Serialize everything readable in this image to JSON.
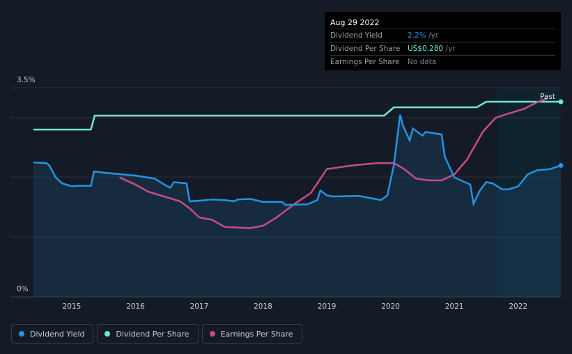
{
  "tooltip": {
    "date": "Aug 29 2022",
    "rows": [
      {
        "label": "Dividend Yield",
        "value": "2.2%",
        "unit": " /yr"
      },
      {
        "label": "Dividend Per Share",
        "value": "US$0.280",
        "unit": " /yr"
      },
      {
        "label": "Earnings Per Share",
        "value": "No data",
        "unit": ""
      }
    ]
  },
  "legend": {
    "items": [
      {
        "label": "Dividend Yield",
        "color": "#2394e5"
      },
      {
        "label": "Dividend Per Share",
        "color": "#6ee7cf"
      },
      {
        "label": "Earnings Per Share",
        "color": "#c94b8a"
      }
    ]
  },
  "colors": {
    "background": "#151b26",
    "yield": "#2394e5",
    "dps": "#6ee7cf",
    "eps": "#c94b8a",
    "grid": "#2b313c"
  },
  "chart_data": {
    "type": "line",
    "ylim": [
      0,
      3.5
    ],
    "y_tick_labels": [
      "3.5%",
      "0%"
    ],
    "x_range": [
      2014.4,
      2022.67
    ],
    "x_ticks": [
      "2015",
      "2016",
      "2017",
      "2018",
      "2019",
      "2020",
      "2021",
      "2022"
    ],
    "past_label": "Past",
    "past_start": 2021.67,
    "series": [
      {
        "name": "Dividend Yield",
        "x": [
          2014.4,
          2014.6,
          2014.65,
          2014.75,
          2014.85,
          2015.0,
          2015.1,
          2015.3,
          2015.35,
          2015.5,
          2016.0,
          2016.3,
          2016.5,
          2016.55,
          2016.6,
          2016.8,
          2016.85,
          2017.0,
          2017.2,
          2017.4,
          2017.55,
          2017.6,
          2017.8,
          2018.0,
          2018.3,
          2018.35,
          2018.7,
          2018.85,
          2018.9,
          2019.0,
          2019.1,
          2019.5,
          2019.85,
          2019.95,
          2020.05,
          2020.15,
          2020.2,
          2020.3,
          2020.35,
          2020.5,
          2020.55,
          2020.8,
          2020.85,
          2021.0,
          2021.25,
          2021.3,
          2021.4,
          2021.5,
          2021.6,
          2021.75,
          2021.85,
          2022.0,
          2022.15,
          2022.3,
          2022.5,
          2022.67
        ],
        "values": [
          2.25,
          2.24,
          2.2,
          2.0,
          1.9,
          1.85,
          1.86,
          1.86,
          2.1,
          2.08,
          2.03,
          1.98,
          1.85,
          1.83,
          1.92,
          1.9,
          1.6,
          1.61,
          1.63,
          1.62,
          1.6,
          1.63,
          1.64,
          1.59,
          1.59,
          1.54,
          1.55,
          1.62,
          1.78,
          1.7,
          1.68,
          1.69,
          1.62,
          1.7,
          2.2,
          3.05,
          2.85,
          2.62,
          2.82,
          2.7,
          2.76,
          2.72,
          2.35,
          2.0,
          1.88,
          1.56,
          1.78,
          1.92,
          1.9,
          1.8,
          1.8,
          1.85,
          2.05,
          2.12,
          2.14,
          2.2
        ]
      },
      {
        "name": "Dividend Per Share",
        "x": [
          2014.4,
          2015.3,
          2015.36,
          2019.9,
          2020.05,
          2021.35,
          2021.5,
          2022.67
        ],
        "values": [
          0.24,
          0.24,
          0.26,
          0.26,
          0.272,
          0.272,
          0.28,
          0.28
        ]
      },
      {
        "name": "Earnings Per Share",
        "x": [
          2015.75,
          2016.0,
          2016.2,
          2016.45,
          2016.7,
          2016.85,
          2017.0,
          2017.2,
          2017.4,
          2017.8,
          2018.0,
          2018.2,
          2018.5,
          2018.75,
          2019.0,
          2019.4,
          2019.8,
          2020.05,
          2020.2,
          2020.4,
          2020.6,
          2020.8,
          2021.0,
          2021.2,
          2021.45,
          2021.65,
          2021.85,
          2022.1,
          2022.3,
          2022.45
        ],
        "values": [
          2.0,
          1.88,
          1.76,
          1.68,
          1.6,
          1.48,
          1.33,
          1.29,
          1.17,
          1.15,
          1.19,
          1.32,
          1.56,
          1.74,
          2.14,
          2.2,
          2.24,
          2.24,
          2.15,
          1.98,
          1.95,
          1.95,
          2.05,
          2.3,
          2.77,
          3.0,
          3.07,
          3.15,
          3.26,
          3.32
        ]
      }
    ]
  }
}
